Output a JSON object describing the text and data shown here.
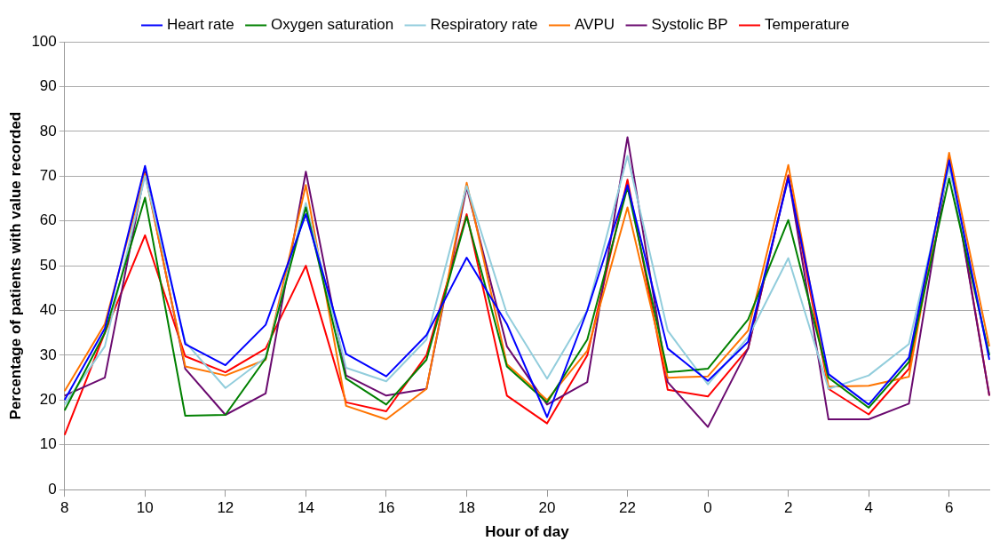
{
  "chart_data": {
    "type": "line",
    "xlabel": "Hour of day",
    "ylabel": "Percentage of patients with value recorded",
    "categories": [
      "8",
      null,
      "10",
      null,
      "12",
      null,
      "14",
      null,
      "16",
      null,
      "18",
      null,
      "20",
      null,
      "22",
      null,
      "0",
      null,
      "2",
      null,
      "4",
      null,
      "6",
      null
    ],
    "ylim": [
      0,
      100
    ],
    "yticks": [
      0,
      10,
      20,
      30,
      40,
      50,
      60,
      70,
      80,
      90,
      100
    ],
    "grid": "y",
    "legend": "top",
    "marker": "none",
    "line_style": "solid",
    "series": [
      {
        "name": "Heart rate",
        "color": "#0000ff",
        "values": [
          20,
          36,
          72.3,
          32.5,
          27.8,
          36.8,
          61.5,
          30.3,
          25.3,
          34.5,
          51.8,
          37,
          16.2,
          40,
          68,
          31.5,
          24.3,
          33,
          69.5,
          25.8,
          19,
          29.5,
          73.5,
          29
        ]
      },
      {
        "name": "Oxygen saturation",
        "color": "#008000",
        "values": [
          17.7,
          35,
          65.2,
          16.5,
          16.7,
          29.3,
          63,
          24.8,
          19,
          29,
          61,
          27.5,
          19.5,
          33.5,
          67.5,
          26.2,
          27,
          38,
          60.2,
          25,
          18.3,
          28.5,
          69.5,
          30
        ]
      },
      {
        "name": "Respiratory rate",
        "color": "#92cddc",
        "values": [
          19,
          32,
          70,
          33,
          22.7,
          29.5,
          64,
          27.2,
          24.2,
          33.5,
          67.8,
          39.3,
          24.8,
          40,
          74.5,
          35.5,
          23.5,
          34,
          51.7,
          22.5,
          25.5,
          32.5,
          72,
          30
        ]
      },
      {
        "name": "AVPU",
        "color": "#ff7400",
        "values": [
          22,
          37,
          70.5,
          27.5,
          25.5,
          29,
          68,
          18.7,
          15.7,
          22.5,
          68.5,
          28,
          20,
          31,
          63,
          25,
          25.3,
          35.5,
          72.5,
          23,
          23.2,
          25.2,
          75.2,
          32
        ]
      },
      {
        "name": "Systolic BP",
        "color": "#6a0a6f",
        "values": [
          21,
          25,
          71,
          27,
          16.7,
          21.5,
          71,
          25.5,
          21,
          22.5,
          67.5,
          32,
          19,
          24,
          78.7,
          24,
          14,
          31.5,
          70,
          15.7,
          15.7,
          19.2,
          73.8,
          21
        ]
      },
      {
        "name": "Temperature",
        "color": "#ff0000",
        "values": [
          12.2,
          35,
          56.8,
          29.8,
          26.2,
          31.5,
          50,
          19.5,
          17.5,
          30,
          61.5,
          21,
          14.8,
          30,
          69.2,
          22.3,
          20.8,
          31.5,
          70.2,
          22.5,
          16.8,
          27,
          74.5,
          21
        ]
      }
    ]
  }
}
